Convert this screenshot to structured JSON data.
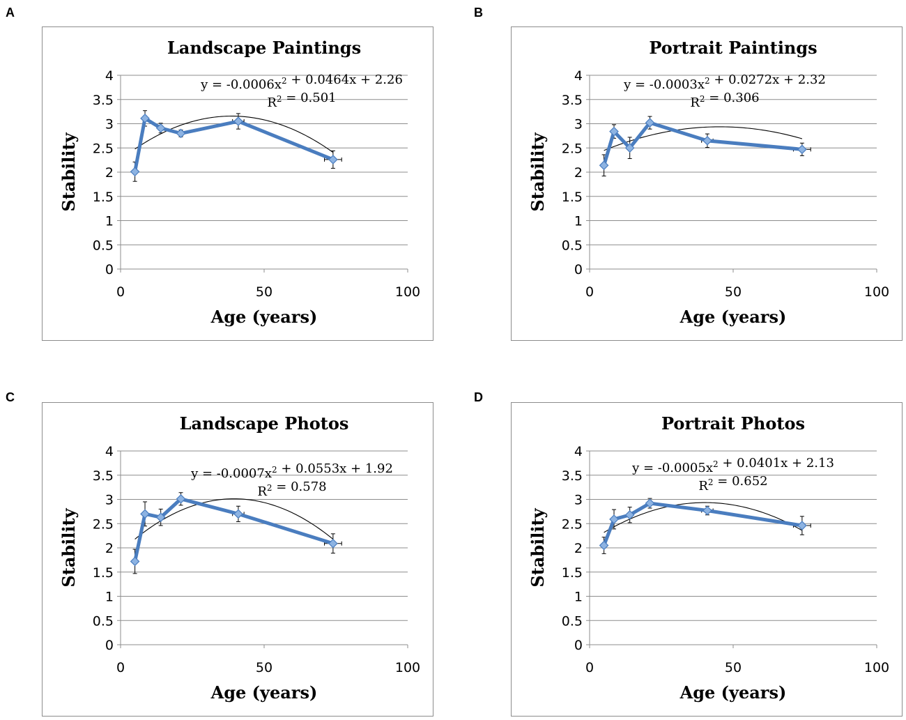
{
  "panels": [
    {
      "letter": "A"
    },
    {
      "letter": "B"
    },
    {
      "letter": "C"
    },
    {
      "letter": "D"
    }
  ],
  "chart_data": [
    {
      "type": "line",
      "title": "Landscape Paintings",
      "xlabel": "Age (years)",
      "ylabel": "Stability",
      "xlim": [
        0,
        100
      ],
      "ylim": [
        0,
        4
      ],
      "xticks": [
        "0",
        "50",
        "100"
      ],
      "yticks": [
        "0",
        "0.5",
        "1",
        "1.5",
        "2",
        "2.5",
        "3",
        "3.5",
        "4"
      ],
      "series": [
        {
          "name": "Stability",
          "x": [
            5,
            8.5,
            14,
            21,
            41,
            74
          ],
          "y": [
            2.01,
            3.11,
            2.91,
            2.8,
            3.05,
            2.26
          ],
          "yerr": [
            0.2,
            0.16,
            0.1,
            0.07,
            0.16,
            0.18
          ],
          "xerr": [
            0,
            0,
            0,
            0,
            2,
            3
          ]
        }
      ],
      "trendline": {
        "type": "polynomial",
        "coefficients": [
          -0.0006,
          0.0464,
          2.26
        ],
        "x_range": [
          5,
          74
        ]
      },
      "equation": "y = -0.0006x² + 0.0464x + 2.26",
      "r2": "R² = 0.501"
    },
    {
      "type": "line",
      "title": "Portrait Paintings",
      "xlabel": "Age (years)",
      "ylabel": "Stability",
      "xlim": [
        0,
        100
      ],
      "ylim": [
        0,
        4
      ],
      "xticks": [
        "0",
        "50",
        "100"
      ],
      "yticks": [
        "0",
        "0.5",
        "1",
        "1.5",
        "2",
        "2.5",
        "3",
        "3.5",
        "4"
      ],
      "series": [
        {
          "name": "Stability",
          "x": [
            5,
            8.5,
            14,
            21,
            41,
            74
          ],
          "y": [
            2.14,
            2.84,
            2.5,
            3.02,
            2.65,
            2.47
          ],
          "yerr": [
            0.22,
            0.14,
            0.22,
            0.13,
            0.14,
            0.13
          ],
          "xerr": [
            0,
            0,
            0,
            0,
            2,
            3
          ]
        }
      ],
      "trendline": {
        "type": "polynomial",
        "coefficients": [
          -0.0003,
          0.0272,
          2.32
        ],
        "x_range": [
          5,
          74
        ]
      },
      "equation": "y = -0.0003x² + 0.0272x + 2.32",
      "r2": "R² = 0.306"
    },
    {
      "type": "line",
      "title": "Landscape Photos",
      "xlabel": "Age (years)",
      "ylabel": "Stability",
      "xlim": [
        0,
        100
      ],
      "ylim": [
        0,
        4
      ],
      "xticks": [
        "0",
        "50",
        "100"
      ],
      "yticks": [
        "0",
        "0.5",
        "1",
        "1.5",
        "2",
        "2.5",
        "3",
        "3.5",
        "4"
      ],
      "series": [
        {
          "name": "Stability",
          "x": [
            5,
            8.5,
            14,
            21,
            41,
            74
          ],
          "y": [
            1.72,
            2.7,
            2.63,
            3.01,
            2.7,
            2.09
          ],
          "yerr": [
            0.25,
            0.25,
            0.17,
            0.13,
            0.16,
            0.2
          ],
          "xerr": [
            0,
            0,
            0,
            0,
            2,
            3
          ]
        }
      ],
      "trendline": {
        "type": "polynomial",
        "coefficients": [
          -0.0007,
          0.0553,
          1.92
        ],
        "x_range": [
          5,
          74
        ]
      },
      "equation": "y = -0.0007x² + 0.0553x + 1.92",
      "r2": "R² = 0.578"
    },
    {
      "type": "line",
      "title": "Portrait Photos",
      "xlabel": "Age (years)",
      "ylabel": "Stability",
      "xlim": [
        0,
        100
      ],
      "ylim": [
        0,
        4
      ],
      "xticks": [
        "0",
        "50",
        "100"
      ],
      "yticks": [
        "0",
        "0.5",
        "1",
        "1.5",
        "2",
        "2.5",
        "3",
        "3.5",
        "4"
      ],
      "series": [
        {
          "name": "Stability",
          "x": [
            5,
            8.5,
            14,
            21,
            41,
            74
          ],
          "y": [
            2.05,
            2.59,
            2.68,
            2.92,
            2.77,
            2.46
          ],
          "yerr": [
            0.17,
            0.2,
            0.16,
            0.1,
            0.09,
            0.19
          ],
          "xerr": [
            0,
            0,
            0,
            0,
            2,
            3
          ]
        }
      ],
      "trendline": {
        "type": "polynomial",
        "coefficients": [
          -0.0005,
          0.0401,
          2.13
        ],
        "x_range": [
          5,
          74
        ]
      },
      "equation": "y = -0.0005x² + 0.0401x + 2.13",
      "r2": "R² = 0.652"
    }
  ]
}
